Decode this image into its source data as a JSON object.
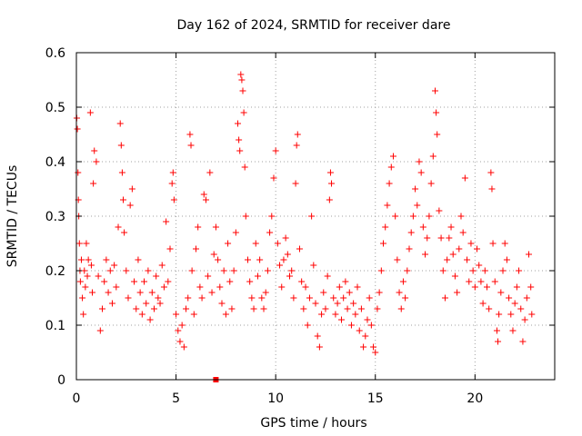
{
  "chart_data": {
    "type": "scatter",
    "title": "Day 162 of 2024, SRMTID for receiver dare",
    "xlabel": "GPS time / hours",
    "ylabel": "SRMTID / TECUs",
    "xlim": [
      0,
      24
    ],
    "ylim": [
      0,
      0.6
    ],
    "x_ticks": [
      0,
      5,
      10,
      15,
      20
    ],
    "x_tick_labels": [
      "0",
      "5",
      "10",
      "15",
      "20"
    ],
    "y_ticks": [
      0,
      0.1,
      0.2,
      0.3,
      0.4,
      0.5,
      0.6
    ],
    "y_tick_labels": [
      "0",
      "0.1",
      "0.2",
      "0.3",
      "0.4",
      "0.5",
      "0.6"
    ],
    "grid": true,
    "marker": "+",
    "color": "#ff0000",
    "series": [
      {
        "name": "SRMTID",
        "points": [
          [
            0.02,
            0.48
          ],
          [
            0.05,
            0.46
          ],
          [
            0.08,
            0.38
          ],
          [
            0.1,
            0.33
          ],
          [
            0.12,
            0.3
          ],
          [
            0.15,
            0.25
          ],
          [
            0.18,
            0.2
          ],
          [
            0.2,
            0.18
          ],
          [
            0.25,
            0.22
          ],
          [
            0.3,
            0.15
          ],
          [
            0.35,
            0.12
          ],
          [
            0.4,
            0.2
          ],
          [
            0.45,
            0.17
          ],
          [
            0.5,
            0.25
          ],
          [
            0.55,
            0.19
          ],
          [
            0.6,
            0.22
          ],
          [
            0.7,
            0.49
          ],
          [
            0.75,
            0.21
          ],
          [
            0.8,
            0.16
          ],
          [
            0.85,
            0.36
          ],
          [
            0.9,
            0.42
          ],
          [
            1.0,
            0.4
          ],
          [
            1.1,
            0.19
          ],
          [
            1.2,
            0.09
          ],
          [
            1.3,
            0.13
          ],
          [
            1.4,
            0.18
          ],
          [
            1.5,
            0.22
          ],
          [
            1.6,
            0.16
          ],
          [
            1.7,
            0.2
          ],
          [
            1.8,
            0.14
          ],
          [
            1.9,
            0.21
          ],
          [
            2.0,
            0.17
          ],
          [
            2.1,
            0.28
          ],
          [
            2.2,
            0.47
          ],
          [
            2.25,
            0.43
          ],
          [
            2.3,
            0.38
          ],
          [
            2.35,
            0.33
          ],
          [
            2.4,
            0.27
          ],
          [
            2.5,
            0.2
          ],
          [
            2.6,
            0.15
          ],
          [
            2.7,
            0.32
          ],
          [
            2.8,
            0.35
          ],
          [
            2.9,
            0.18
          ],
          [
            3.0,
            0.13
          ],
          [
            3.1,
            0.22
          ],
          [
            3.2,
            0.16
          ],
          [
            3.3,
            0.12
          ],
          [
            3.4,
            0.18
          ],
          [
            3.5,
            0.14
          ],
          [
            3.6,
            0.2
          ],
          [
            3.7,
            0.11
          ],
          [
            3.8,
            0.16
          ],
          [
            3.9,
            0.13
          ],
          [
            4.0,
            0.19
          ],
          [
            4.1,
            0.15
          ],
          [
            4.2,
            0.14
          ],
          [
            4.3,
            0.21
          ],
          [
            4.4,
            0.17
          ],
          [
            4.5,
            0.29
          ],
          [
            4.6,
            0.18
          ],
          [
            4.7,
            0.24
          ],
          [
            4.8,
            0.36
          ],
          [
            4.85,
            0.38
          ],
          [
            4.9,
            0.33
          ],
          [
            5.0,
            0.12
          ],
          [
            5.1,
            0.09
          ],
          [
            5.2,
            0.07
          ],
          [
            5.3,
            0.1
          ],
          [
            5.4,
            0.06
          ],
          [
            5.5,
            0.13
          ],
          [
            5.6,
            0.15
          ],
          [
            5.7,
            0.45
          ],
          [
            5.75,
            0.43
          ],
          [
            5.8,
            0.2
          ],
          [
            5.9,
            0.12
          ],
          [
            6.0,
            0.24
          ],
          [
            6.1,
            0.28
          ],
          [
            6.2,
            0.17
          ],
          [
            6.3,
            0.15
          ],
          [
            6.4,
            0.34
          ],
          [
            6.5,
            0.33
          ],
          [
            6.6,
            0.19
          ],
          [
            6.7,
            0.38
          ],
          [
            6.8,
            0.16
          ],
          [
            6.9,
            0.23
          ],
          [
            7.0,
            0.28
          ],
          [
            7.1,
            0.22
          ],
          [
            7.2,
            0.17
          ],
          [
            7.3,
            0.14
          ],
          [
            7.4,
            0.2
          ],
          [
            7.5,
            0.12
          ],
          [
            7.6,
            0.25
          ],
          [
            7.7,
            0.18
          ],
          [
            7.8,
            0.13
          ],
          [
            7.9,
            0.2
          ],
          [
            8.0,
            0.27
          ],
          [
            8.1,
            0.47
          ],
          [
            8.15,
            0.44
          ],
          [
            8.2,
            0.42
          ],
          [
            8.25,
            0.56
          ],
          [
            8.3,
            0.55
          ],
          [
            8.35,
            0.53
          ],
          [
            8.4,
            0.49
          ],
          [
            8.45,
            0.39
          ],
          [
            8.5,
            0.3
          ],
          [
            8.6,
            0.22
          ],
          [
            8.7,
            0.18
          ],
          [
            8.8,
            0.15
          ],
          [
            8.9,
            0.13
          ],
          [
            9.0,
            0.25
          ],
          [
            9.1,
            0.19
          ],
          [
            9.2,
            0.22
          ],
          [
            9.3,
            0.15
          ],
          [
            9.4,
            0.13
          ],
          [
            9.5,
            0.16
          ],
          [
            9.6,
            0.2
          ],
          [
            9.7,
            0.27
          ],
          [
            9.8,
            0.3
          ],
          [
            9.9,
            0.37
          ],
          [
            10.0,
            0.42
          ],
          [
            10.1,
            0.25
          ],
          [
            10.2,
            0.21
          ],
          [
            10.3,
            0.17
          ],
          [
            10.4,
            0.22
          ],
          [
            10.5,
            0.26
          ],
          [
            10.6,
            0.23
          ],
          [
            10.7,
            0.19
          ],
          [
            10.8,
            0.2
          ],
          [
            10.9,
            0.15
          ],
          [
            11.0,
            0.36
          ],
          [
            11.05,
            0.43
          ],
          [
            11.1,
            0.45
          ],
          [
            11.2,
            0.24
          ],
          [
            11.3,
            0.18
          ],
          [
            11.4,
            0.13
          ],
          [
            11.5,
            0.17
          ],
          [
            11.6,
            0.1
          ],
          [
            11.7,
            0.15
          ],
          [
            11.8,
            0.3
          ],
          [
            11.9,
            0.21
          ],
          [
            12.0,
            0.14
          ],
          [
            12.1,
            0.08
          ],
          [
            12.2,
            0.06
          ],
          [
            12.3,
            0.12
          ],
          [
            12.4,
            0.16
          ],
          [
            12.5,
            0.13
          ],
          [
            12.6,
            0.19
          ],
          [
            12.7,
            0.33
          ],
          [
            12.75,
            0.38
          ],
          [
            12.8,
            0.36
          ],
          [
            12.9,
            0.15
          ],
          [
            13.0,
            0.12
          ],
          [
            13.1,
            0.14
          ],
          [
            13.2,
            0.17
          ],
          [
            13.3,
            0.11
          ],
          [
            13.4,
            0.15
          ],
          [
            13.5,
            0.18
          ],
          [
            13.6,
            0.13
          ],
          [
            13.7,
            0.16
          ],
          [
            13.8,
            0.1
          ],
          [
            13.9,
            0.14
          ],
          [
            14.0,
            0.12
          ],
          [
            14.1,
            0.17
          ],
          [
            14.2,
            0.09
          ],
          [
            14.3,
            0.13
          ],
          [
            14.4,
            0.06
          ],
          [
            14.5,
            0.08
          ],
          [
            14.6,
            0.11
          ],
          [
            14.7,
            0.15
          ],
          [
            14.8,
            0.1
          ],
          [
            14.9,
            0.06
          ],
          [
            15.0,
            0.05
          ],
          [
            15.1,
            0.13
          ],
          [
            15.2,
            0.16
          ],
          [
            15.3,
            0.2
          ],
          [
            15.4,
            0.25
          ],
          [
            15.5,
            0.28
          ],
          [
            15.6,
            0.32
          ],
          [
            15.7,
            0.36
          ],
          [
            15.8,
            0.39
          ],
          [
            15.9,
            0.41
          ],
          [
            16.0,
            0.3
          ],
          [
            16.1,
            0.22
          ],
          [
            16.2,
            0.16
          ],
          [
            16.3,
            0.13
          ],
          [
            16.4,
            0.18
          ],
          [
            16.5,
            0.15
          ],
          [
            16.6,
            0.2
          ],
          [
            16.7,
            0.24
          ],
          [
            16.8,
            0.27
          ],
          [
            16.9,
            0.3
          ],
          [
            17.0,
            0.35
          ],
          [
            17.1,
            0.32
          ],
          [
            17.2,
            0.4
          ],
          [
            17.3,
            0.38
          ],
          [
            17.4,
            0.28
          ],
          [
            17.5,
            0.23
          ],
          [
            17.6,
            0.26
          ],
          [
            17.7,
            0.3
          ],
          [
            17.8,
            0.36
          ],
          [
            17.9,
            0.41
          ],
          [
            18.0,
            0.53
          ],
          [
            18.05,
            0.49
          ],
          [
            18.1,
            0.45
          ],
          [
            18.2,
            0.31
          ],
          [
            18.3,
            0.26
          ],
          [
            18.4,
            0.2
          ],
          [
            18.5,
            0.15
          ],
          [
            18.6,
            0.22
          ],
          [
            18.7,
            0.26
          ],
          [
            18.8,
            0.28
          ],
          [
            18.9,
            0.23
          ],
          [
            19.0,
            0.19
          ],
          [
            19.1,
            0.16
          ],
          [
            19.2,
            0.24
          ],
          [
            19.3,
            0.3
          ],
          [
            19.4,
            0.27
          ],
          [
            19.5,
            0.37
          ],
          [
            19.6,
            0.22
          ],
          [
            19.7,
            0.18
          ],
          [
            19.8,
            0.25
          ],
          [
            19.9,
            0.2
          ],
          [
            20.0,
            0.17
          ],
          [
            20.1,
            0.24
          ],
          [
            20.2,
            0.21
          ],
          [
            20.3,
            0.18
          ],
          [
            20.4,
            0.14
          ],
          [
            20.5,
            0.2
          ],
          [
            20.6,
            0.17
          ],
          [
            20.7,
            0.13
          ],
          [
            20.8,
            0.38
          ],
          [
            20.85,
            0.35
          ],
          [
            20.9,
            0.25
          ],
          [
            21.0,
            0.18
          ],
          [
            21.1,
            0.09
          ],
          [
            21.15,
            0.07
          ],
          [
            21.2,
            0.12
          ],
          [
            21.3,
            0.16
          ],
          [
            21.4,
            0.2
          ],
          [
            21.5,
            0.25
          ],
          [
            21.6,
            0.22
          ],
          [
            21.7,
            0.15
          ],
          [
            21.8,
            0.12
          ],
          [
            21.9,
            0.09
          ],
          [
            22.0,
            0.14
          ],
          [
            22.1,
            0.17
          ],
          [
            22.2,
            0.2
          ],
          [
            22.3,
            0.13
          ],
          [
            22.4,
            0.07
          ],
          [
            22.5,
            0.11
          ],
          [
            22.6,
            0.15
          ],
          [
            22.7,
            0.23
          ],
          [
            22.8,
            0.17
          ],
          [
            22.85,
            0.12
          ]
        ]
      }
    ],
    "annotations": [
      {
        "type": "square_marker",
        "x": 7.0,
        "y": 0.0
      }
    ]
  }
}
